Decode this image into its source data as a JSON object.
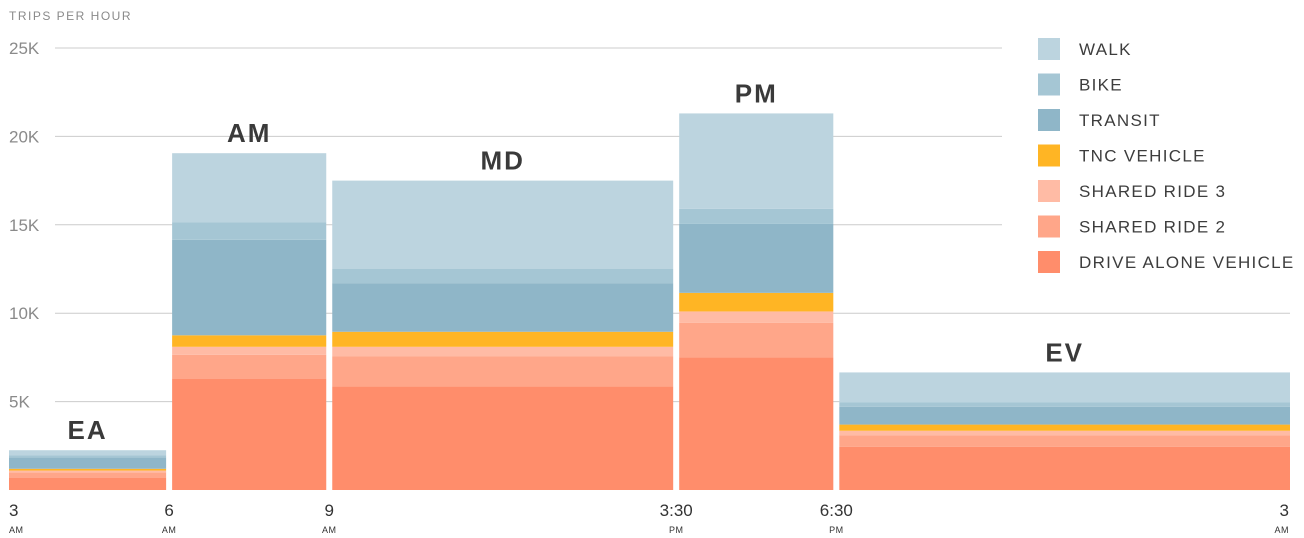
{
  "chart_data": {
    "type": "bar",
    "stacked": true,
    "variable_width": true,
    "ylabel": "TRIPS PER HOUR",
    "ylim": [
      0,
      25000
    ],
    "y_ticks": [
      "25K",
      "20K",
      "15K",
      "10K",
      "5K"
    ],
    "y_tick_values": [
      25000,
      20000,
      15000,
      10000,
      5000
    ],
    "grid": true,
    "legend_position": "top-right",
    "x_ticks": [
      {
        "hour": 3,
        "label": "3",
        "sub": "AM"
      },
      {
        "hour": 6,
        "label": "6",
        "sub": "AM"
      },
      {
        "hour": 9,
        "label": "9",
        "sub": "AM"
      },
      {
        "hour": 15.5,
        "label": "3:30",
        "sub": "PM"
      },
      {
        "hour": 18.5,
        "label": "6:30",
        "sub": "PM"
      },
      {
        "hour": 27,
        "label": "3",
        "sub": "AM"
      }
    ],
    "categories": [
      "EA",
      "AM",
      "MD",
      "PM",
      "EV"
    ],
    "period_hours": [
      [
        3,
        6
      ],
      [
        6,
        9
      ],
      [
        9,
        15.5
      ],
      [
        15.5,
        18.5
      ],
      [
        18.5,
        27
      ]
    ],
    "series": [
      {
        "name": "DRIVE ALONE VEHICLE",
        "color": "#ff8d6b",
        "values": [
          700,
          6300,
          5850,
          7500,
          2450
        ]
      },
      {
        "name": "SHARED RIDE 2",
        "color": "#ffa689",
        "values": [
          300,
          1350,
          1700,
          1950,
          650
        ]
      },
      {
        "name": "SHARED RIDE 3",
        "color": "#ffbba5",
        "values": [
          100,
          450,
          550,
          650,
          250
        ]
      },
      {
        "name": "TNC VEHICLE",
        "color": "#ffb524",
        "values": [
          100,
          650,
          850,
          1050,
          350
        ]
      },
      {
        "name": "TRANSIT",
        "color": "#8fb6c8",
        "values": [
          650,
          5400,
          2750,
          3900,
          1000
        ]
      },
      {
        "name": "BIKE",
        "color": "#a5c6d4",
        "values": [
          100,
          1000,
          800,
          850,
          250
        ]
      },
      {
        "name": "WALK",
        "color": "#bcd4df",
        "values": [
          300,
          3900,
          5000,
          5400,
          1700
        ]
      }
    ]
  }
}
